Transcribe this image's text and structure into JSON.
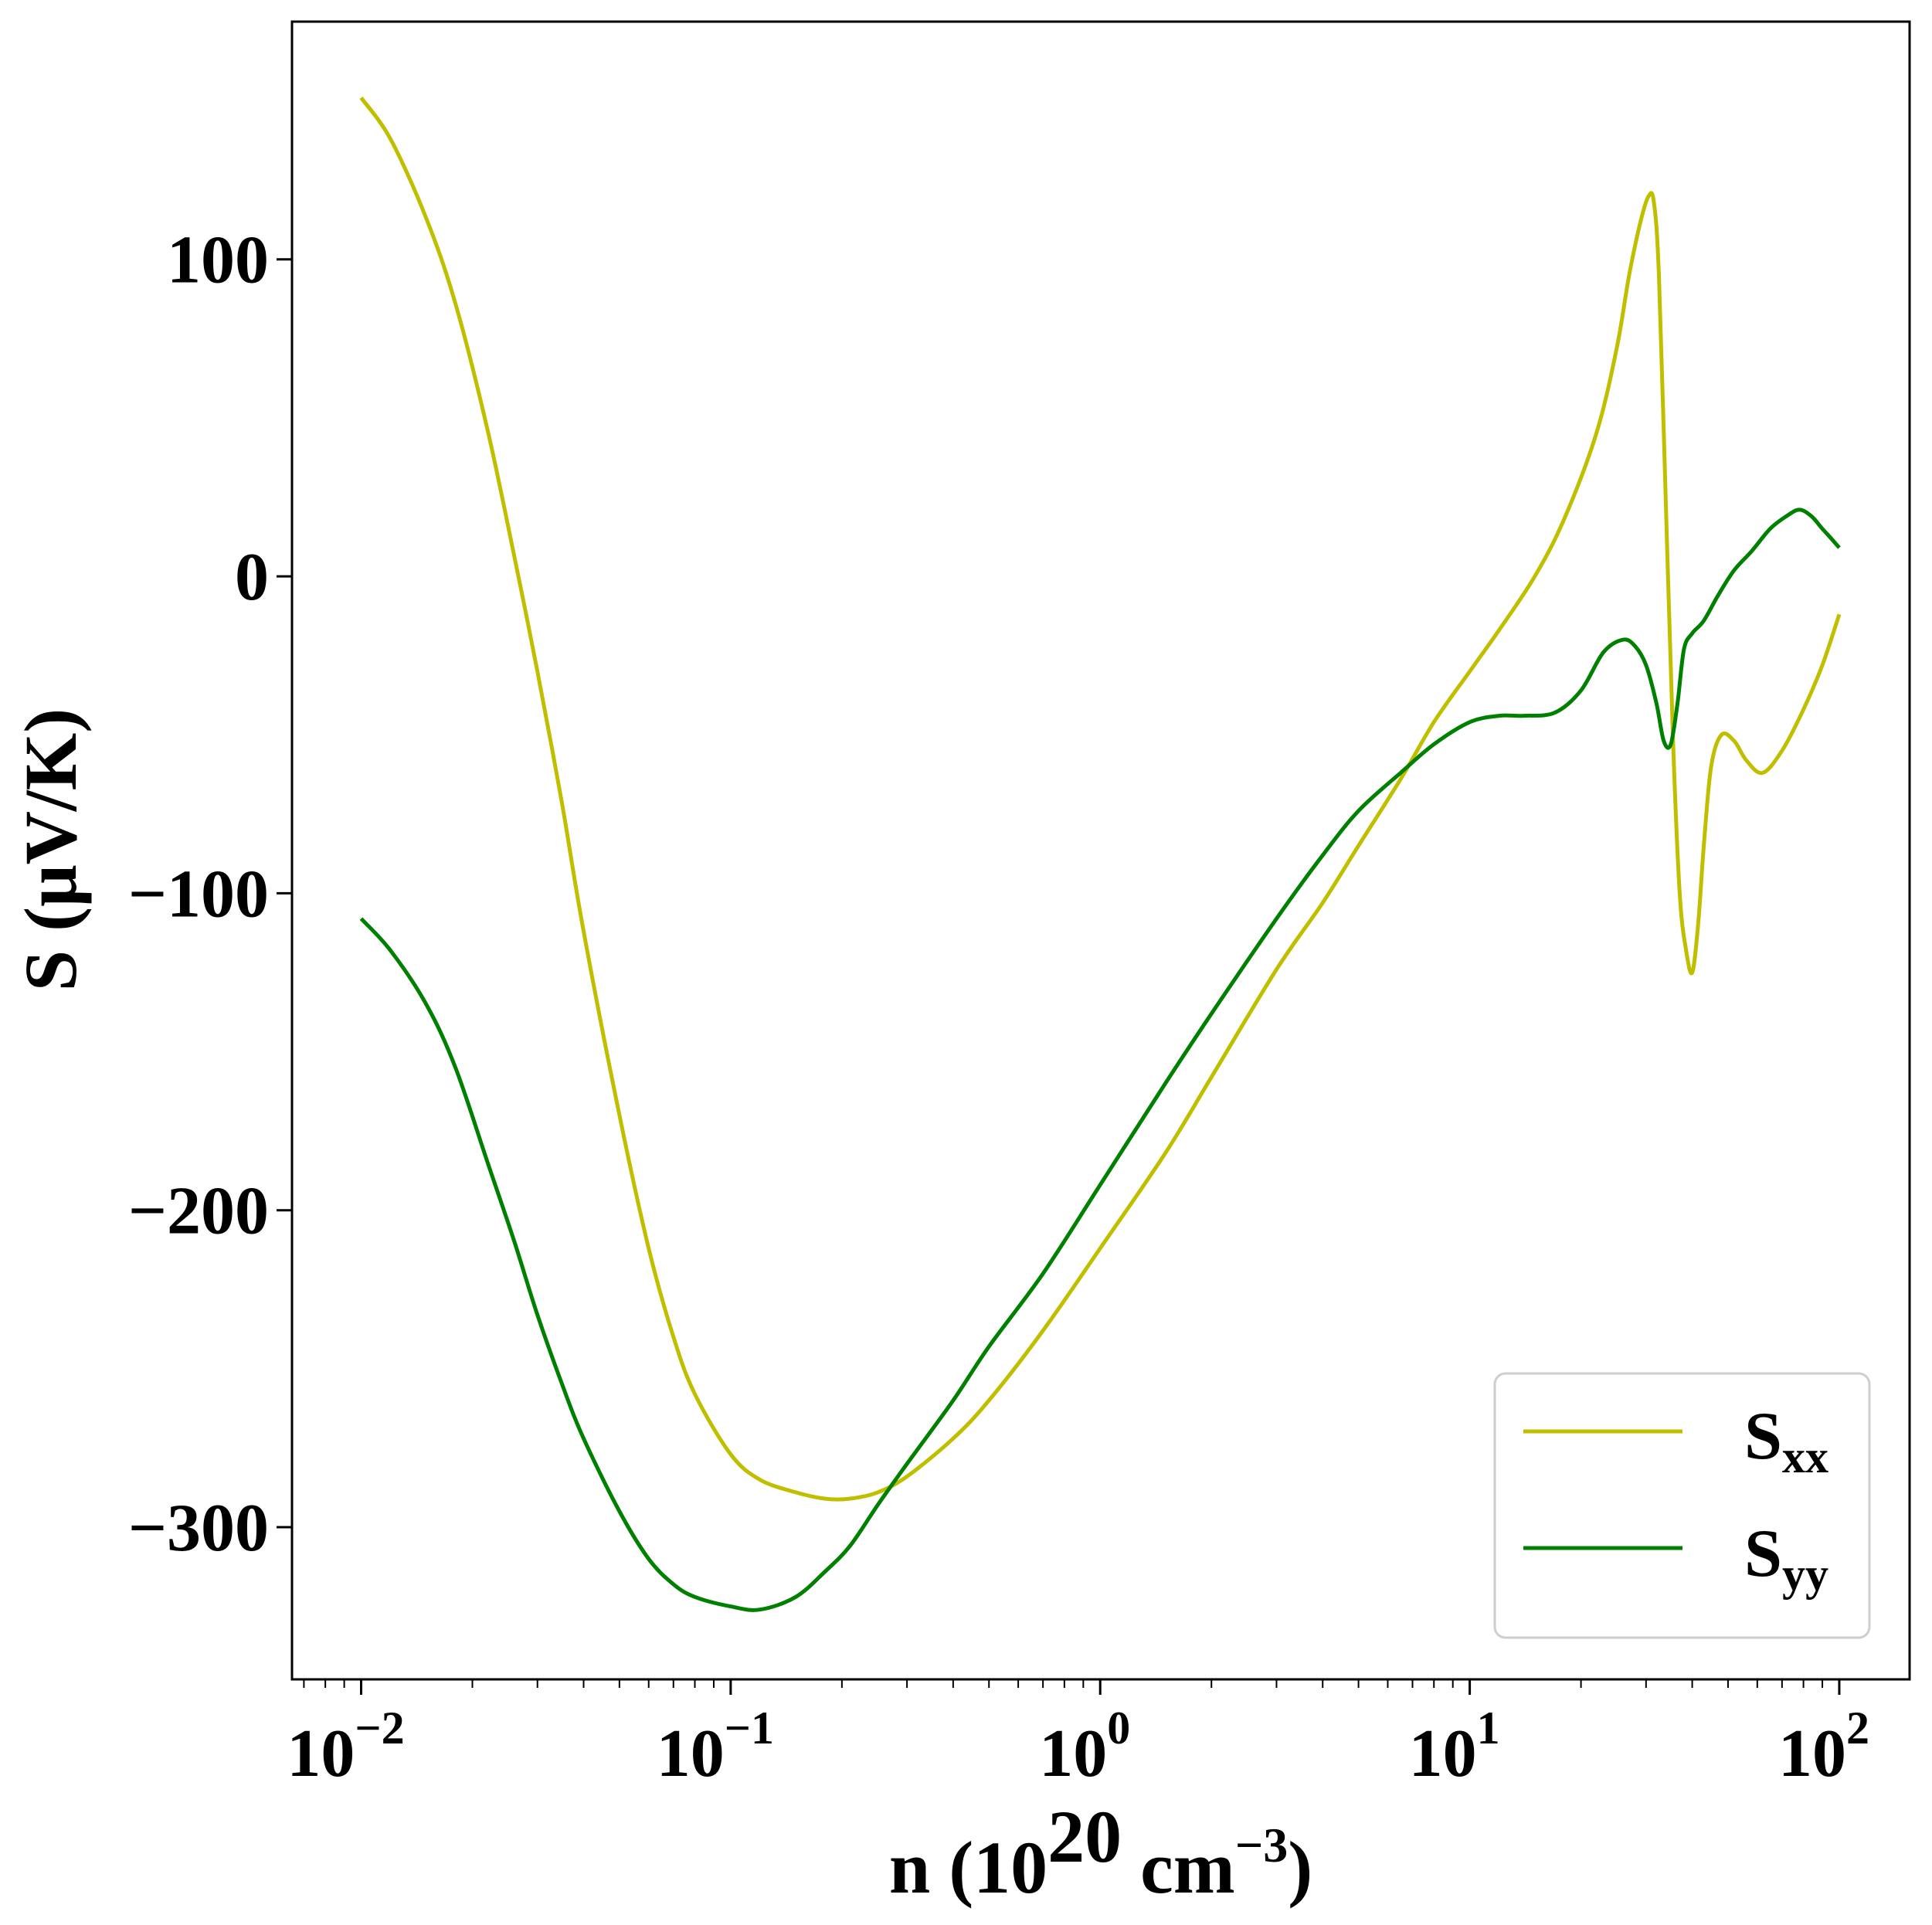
{
  "chart_data": {
    "type": "line",
    "title": "",
    "xlabel": {
      "prefix": "n (10",
      "exp1": "20",
      "mid": " cm",
      "exp2": "−3",
      "suffix": ")"
    },
    "ylabel": "S (μV/K)",
    "xscale": "log",
    "xlim": [
      0.0065,
      155
    ],
    "ylim": [
      -348,
      175
    ],
    "x_ticks": [
      {
        "value": 0.01,
        "base": "10",
        "exp": "−2"
      },
      {
        "value": 0.1,
        "base": "10",
        "exp": "−1"
      },
      {
        "value": 1,
        "base": "10",
        "exp": "0"
      },
      {
        "value": 10,
        "base": "10",
        "exp": "1"
      },
      {
        "value": 100,
        "base": "10",
        "exp": "2"
      }
    ],
    "y_ticks": [
      {
        "value": 100,
        "label": "100"
      },
      {
        "value": 0,
        "label": "0"
      },
      {
        "value": -100,
        "label": "−100"
      },
      {
        "value": -200,
        "label": "−200"
      },
      {
        "value": -300,
        "label": "−300"
      }
    ],
    "grid": false,
    "legend_position": "bottom-right",
    "series": [
      {
        "name": "Sxx",
        "label_main": "S",
        "label_sub": "xx",
        "color": "#bfbf00",
        "points": [
          [
            0.01,
            151
          ],
          [
            0.012,
            138
          ],
          [
            0.015,
            113
          ],
          [
            0.018,
            86
          ],
          [
            0.022,
            46
          ],
          [
            0.026,
            6
          ],
          [
            0.03,
            -30
          ],
          [
            0.035,
            -72
          ],
          [
            0.04,
            -112
          ],
          [
            0.05,
            -170
          ],
          [
            0.06,
            -212
          ],
          [
            0.07,
            -240
          ],
          [
            0.08,
            -258
          ],
          [
            0.1,
            -277
          ],
          [
            0.12,
            -285
          ],
          [
            0.15,
            -289
          ],
          [
            0.18,
            -291
          ],
          [
            0.21,
            -291
          ],
          [
            0.25,
            -289
          ],
          [
            0.3,
            -284
          ],
          [
            0.4,
            -272
          ],
          [
            0.5,
            -260
          ],
          [
            0.7,
            -238
          ],
          [
            1,
            -212
          ],
          [
            1.5,
            -182
          ],
          [
            2,
            -158
          ],
          [
            3,
            -124
          ],
          [
            4,
            -103
          ],
          [
            5,
            -85
          ],
          [
            6.5,
            -64
          ],
          [
            8,
            -46
          ],
          [
            10,
            -30
          ],
          [
            12,
            -17
          ],
          [
            15,
            0
          ],
          [
            18,
            18
          ],
          [
            22,
            45
          ],
          [
            25,
            72
          ],
          [
            27,
            95
          ],
          [
            29,
            112
          ],
          [
            30.5,
            120
          ],
          [
            31.5,
            118
          ],
          [
            32.5,
            95
          ],
          [
            34,
            20
          ],
          [
            35.5,
            -52
          ],
          [
            37,
            -100
          ],
          [
            38.5,
            -118
          ],
          [
            40,
            -125
          ],
          [
            41.5,
            -110
          ],
          [
            43,
            -85
          ],
          [
            45,
            -60
          ],
          [
            48,
            -50
          ],
          [
            52,
            -52
          ],
          [
            56,
            -58
          ],
          [
            62,
            -62
          ],
          [
            70,
            -55
          ],
          [
            80,
            -42
          ],
          [
            90,
            -28
          ],
          [
            100,
            -12
          ]
        ]
      },
      {
        "name": "Syy",
        "label_main": "S",
        "label_sub": "yy",
        "color": "#008000",
        "points": [
          [
            0.01,
            -108
          ],
          [
            0.012,
            -118
          ],
          [
            0.015,
            -135
          ],
          [
            0.018,
            -155
          ],
          [
            0.022,
            -185
          ],
          [
            0.026,
            -210
          ],
          [
            0.03,
            -233
          ],
          [
            0.035,
            -255
          ],
          [
            0.04,
            -272
          ],
          [
            0.05,
            -295
          ],
          [
            0.06,
            -310
          ],
          [
            0.07,
            -318
          ],
          [
            0.08,
            -322
          ],
          [
            0.1,
            -325
          ],
          [
            0.12,
            -326
          ],
          [
            0.15,
            -322
          ],
          [
            0.18,
            -314
          ],
          [
            0.21,
            -306
          ],
          [
            0.25,
            -293
          ],
          [
            0.3,
            -280
          ],
          [
            0.4,
            -260
          ],
          [
            0.5,
            -243
          ],
          [
            0.7,
            -220
          ],
          [
            1,
            -192
          ],
          [
            1.5,
            -160
          ],
          [
            2,
            -138
          ],
          [
            3,
            -108
          ],
          [
            4,
            -88
          ],
          [
            5,
            -74
          ],
          [
            6.5,
            -62
          ],
          [
            8,
            -53
          ],
          [
            10,
            -46
          ],
          [
            12,
            -44
          ],
          [
            14,
            -44
          ],
          [
            17,
            -43
          ],
          [
            20,
            -36
          ],
          [
            23,
            -24
          ],
          [
            26,
            -20
          ],
          [
            28,
            -22
          ],
          [
            30,
            -28
          ],
          [
            32,
            -40
          ],
          [
            33.5,
            -52
          ],
          [
            35,
            -53
          ],
          [
            36.5,
            -40
          ],
          [
            38,
            -23
          ],
          [
            40,
            -18
          ],
          [
            43,
            -14
          ],
          [
            47,
            -6
          ],
          [
            52,
            2
          ],
          [
            58,
            8
          ],
          [
            65,
            15
          ],
          [
            72,
            19
          ],
          [
            78,
            21
          ],
          [
            84,
            19
          ],
          [
            90,
            15
          ],
          [
            95,
            12
          ],
          [
            100,
            9
          ]
        ]
      }
    ]
  }
}
